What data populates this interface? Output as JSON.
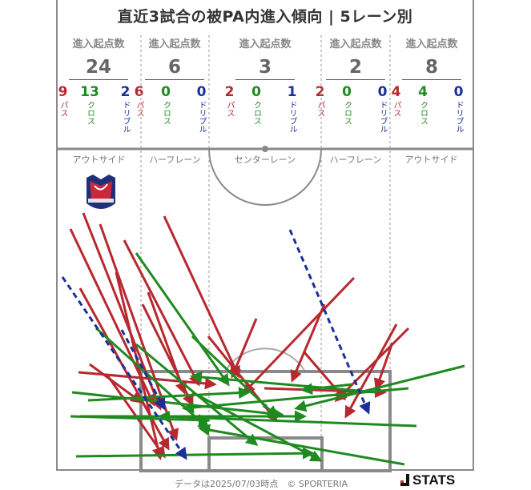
{
  "title": "直近3試合の被PA内進入傾向 | 5レーン別",
  "header_label": "進入起点数",
  "type_labels": {
    "pass": "パス",
    "cross": "クロス",
    "dribble": "ドリブル"
  },
  "colors": {
    "pass": "#b8282f",
    "cross": "#1f8a1f",
    "dribble": "#1a2f9a",
    "lines": "#8a8a8a"
  },
  "lanes": [
    {
      "name": "アウトサイド",
      "total": "24",
      "pass": "9",
      "cross": "13",
      "dribble": "2"
    },
    {
      "name": "ハーフレーン",
      "total": "6",
      "pass": "6",
      "cross": "0",
      "dribble": "0"
    },
    {
      "name": "センターレーン",
      "total": "3",
      "pass": "2",
      "cross": "0",
      "dribble": "1"
    },
    {
      "name": "ハーフレーン",
      "total": "2",
      "pass": "2",
      "cross": "0",
      "dribble": "0"
    },
    {
      "name": "アウトサイド",
      "total": "8",
      "pass": "4",
      "cross": "4",
      "dribble": "0"
    }
  ],
  "team_logo": "fagiano-okayama-crest",
  "footer": {
    "text": "データは2025/07/03時点　© SPORTERIA",
    "logo": "STATS"
  }
}
